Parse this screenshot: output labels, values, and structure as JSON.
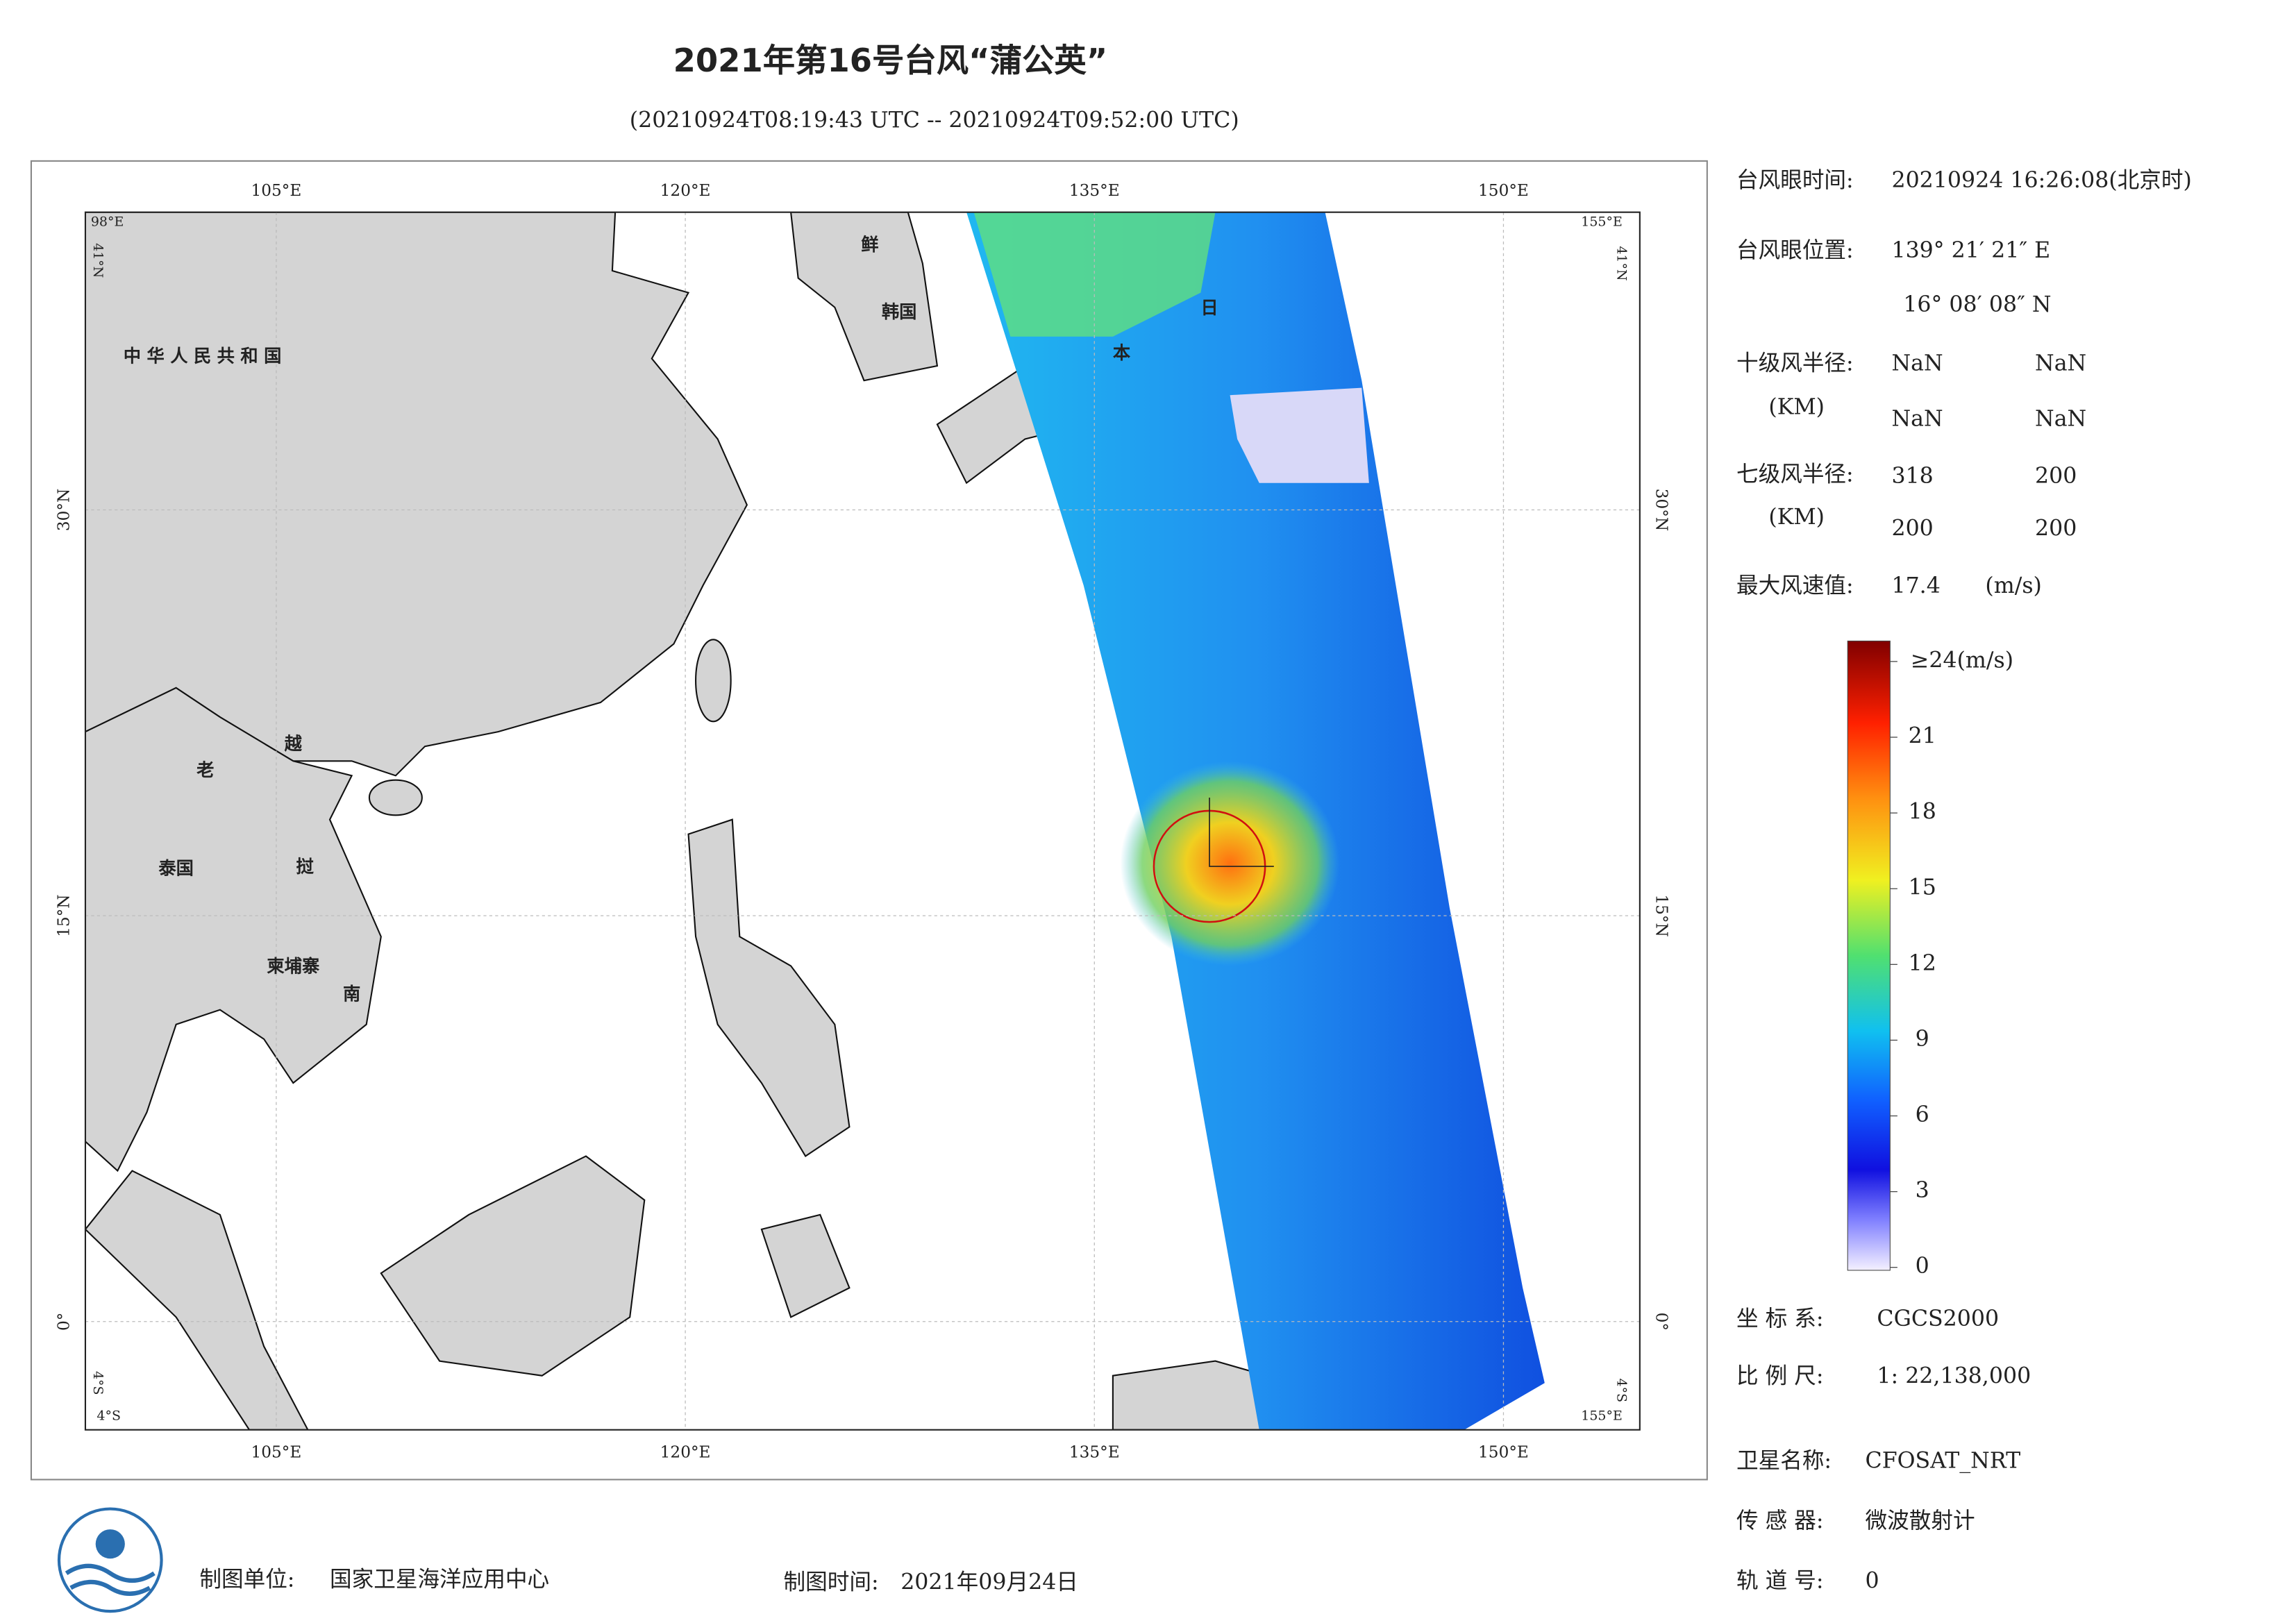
{
  "header": {
    "title": "2021年第16号台风“蒲公英”",
    "subtitle": "(20210924T08:19:43 UTC -- 20210924T09:52:00 UTC)"
  },
  "map": {
    "lon_range": [
      98,
      155
    ],
    "lat_range": [
      -4,
      41
    ],
    "lon_ticks": [
      {
        "value": 105,
        "label": "105°E"
      },
      {
        "value": 120,
        "label": "120°E"
      },
      {
        "value": 135,
        "label": "135°E"
      },
      {
        "value": 150,
        "label": "150°E"
      }
    ],
    "lat_ticks": [
      {
        "value": 30,
        "label": "30°N"
      },
      {
        "value": 15,
        "label": "15°N"
      },
      {
        "value": 0,
        "label": "0°"
      }
    ],
    "corners": {
      "top_left": [
        "98°E",
        "41°N"
      ],
      "top_right": [
        "155°E",
        "41°N"
      ],
      "bottom_left": [
        "4°S",
        "4°S"
      ],
      "bottom_right": [
        "4°S",
        "155°E"
      ]
    },
    "places": [
      "中华人民共和国",
      "鲜",
      "韩国",
      "日",
      "本",
      "老",
      "越",
      "泰国",
      "挝",
      "柬埔寨",
      "南"
    ]
  },
  "info": {
    "eye_time": {
      "label": "台风眼时间:",
      "value": "20210924 16:26:08(北京时)"
    },
    "eye_position": {
      "label": "台风眼位置:",
      "lon": "139° 21′ 21″ E",
      "lat": "16° 08′ 08″ N"
    },
    "r10": {
      "label": "十级风半径:",
      "unit": "(KM)",
      "values": [
        "NaN",
        "NaN",
        "NaN",
        "NaN"
      ]
    },
    "r7": {
      "label": "七级风半径:",
      "unit": "(KM)",
      "values": [
        318,
        200,
        200,
        200
      ]
    },
    "max_wind": {
      "label": "最大风速值:",
      "value": 17.4,
      "unit": "(m/s)"
    },
    "crs": {
      "label": "坐 标 系:",
      "value": "CGCS2000"
    },
    "scale": {
      "label": "比 例 尺:",
      "value": "1: 22,138,000"
    },
    "satellite": {
      "label": "卫星名称:",
      "value": "CFOSAT_NRT"
    },
    "sensor": {
      "label": "传 感 器:",
      "value": "微波散射计"
    },
    "orbit": {
      "label": "轨 道 号:",
      "value": 0
    }
  },
  "colorbar": {
    "range": [
      0,
      24
    ],
    "ticks": [
      0,
      3,
      6,
      9,
      12,
      15,
      18,
      21,
      {
        "value": 24,
        "label": "≥24(m/s)"
      }
    ]
  },
  "footer": {
    "unit_label": "制图单位:",
    "unit": "国家卫星海洋应用中心",
    "time_label": "制图时间:",
    "time": "2021年09月24日"
  }
}
